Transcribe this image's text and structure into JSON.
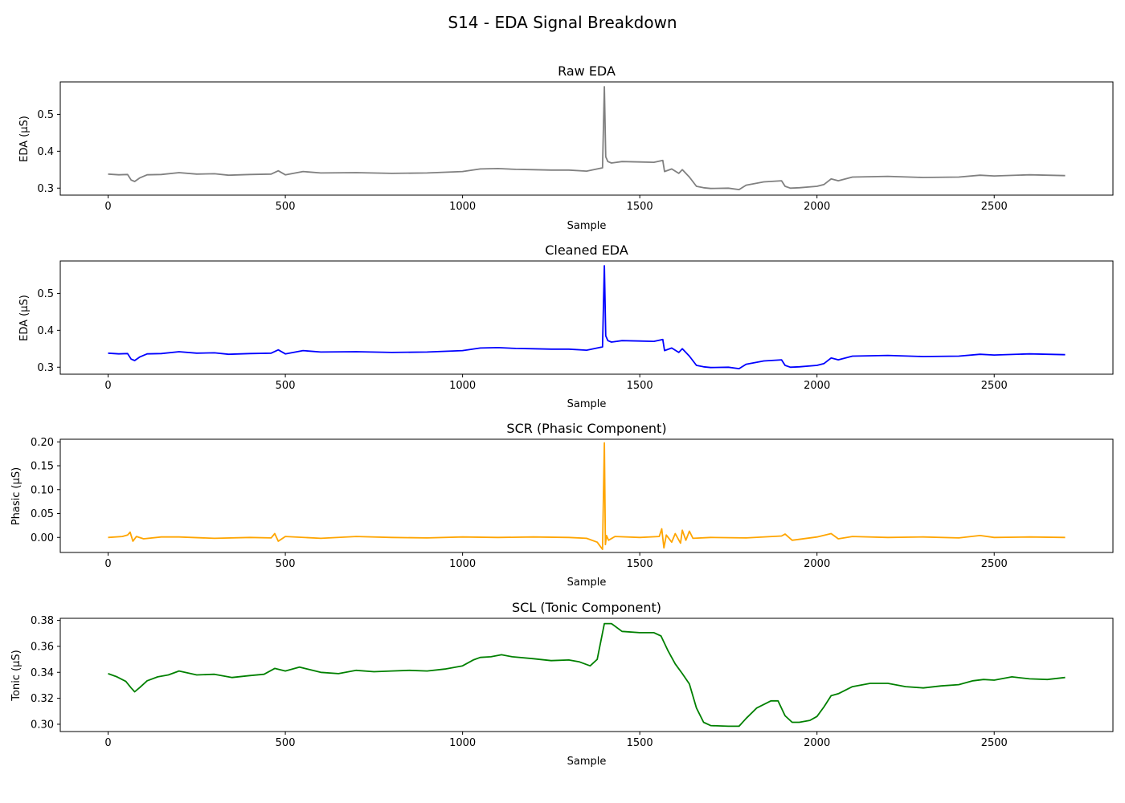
{
  "figure": {
    "title": "S14 - EDA Signal Breakdown"
  },
  "chart_data": [
    {
      "type": "line",
      "title": "Raw EDA",
      "xlabel": "Sample",
      "ylabel": "EDA (µS)",
      "color": "#808080",
      "xlim": [
        -135,
        2835
      ],
      "ylim": [
        0.281,
        0.588
      ],
      "xticks": [
        0,
        500,
        1000,
        1500,
        2000,
        2500
      ],
      "yticks": [
        0.3,
        0.4,
        0.5
      ],
      "ytick_labels": [
        "0.3",
        "0.4",
        "0.5"
      ],
      "series": [
        {
          "x": [
            0,
            30,
            55,
            65,
            75,
            90,
            110,
            150,
            200,
            250,
            300,
            340,
            400,
            460,
            480,
            500,
            550,
            600,
            700,
            800,
            900,
            1000,
            1050,
            1100,
            1150,
            1200,
            1250,
            1300,
            1350,
            1380,
            1395,
            1400,
            1404,
            1410,
            1420,
            1450,
            1500,
            1540,
            1565,
            1570,
            1590,
            1610,
            1620,
            1640,
            1660,
            1680,
            1700,
            1750,
            1780,
            1800,
            1850,
            1900,
            1910,
            1925,
            1950,
            2000,
            2020,
            2040,
            2060,
            2100,
            2200,
            2300,
            2400,
            2460,
            2500,
            2600,
            2700
          ],
          "y": [
            0.338,
            0.336,
            0.337,
            0.322,
            0.318,
            0.328,
            0.336,
            0.337,
            0.342,
            0.338,
            0.339,
            0.335,
            0.337,
            0.338,
            0.347,
            0.336,
            0.345,
            0.341,
            0.342,
            0.34,
            0.341,
            0.345,
            0.352,
            0.353,
            0.351,
            0.35,
            0.349,
            0.349,
            0.346,
            0.352,
            0.355,
            0.575,
            0.385,
            0.372,
            0.368,
            0.372,
            0.371,
            0.37,
            0.375,
            0.345,
            0.352,
            0.34,
            0.35,
            0.33,
            0.305,
            0.301,
            0.299,
            0.3,
            0.296,
            0.308,
            0.317,
            0.32,
            0.305,
            0.3,
            0.301,
            0.305,
            0.31,
            0.325,
            0.32,
            0.33,
            0.332,
            0.329,
            0.33,
            0.335,
            0.333,
            0.336,
            0.334
          ]
        }
      ]
    },
    {
      "type": "line",
      "title": "Cleaned EDA",
      "xlabel": "Sample",
      "ylabel": "EDA (µS)",
      "color": "#0000ff",
      "xlim": [
        -135,
        2835
      ],
      "ylim": [
        0.281,
        0.588
      ],
      "xticks": [
        0,
        500,
        1000,
        1500,
        2000,
        2500
      ],
      "yticks": [
        0.3,
        0.4,
        0.5
      ],
      "ytick_labels": [
        "0.3",
        "0.4",
        "0.5"
      ],
      "series": [
        {
          "x": [
            0,
            30,
            55,
            65,
            75,
            90,
            110,
            150,
            200,
            250,
            300,
            340,
            400,
            460,
            480,
            500,
            550,
            600,
            700,
            800,
            900,
            1000,
            1050,
            1100,
            1150,
            1200,
            1250,
            1300,
            1350,
            1380,
            1395,
            1400,
            1404,
            1410,
            1420,
            1450,
            1500,
            1540,
            1565,
            1570,
            1590,
            1610,
            1620,
            1640,
            1660,
            1680,
            1700,
            1750,
            1780,
            1800,
            1850,
            1900,
            1910,
            1925,
            1950,
            2000,
            2020,
            2040,
            2060,
            2100,
            2200,
            2300,
            2400,
            2460,
            2500,
            2600,
            2700
          ],
          "y": [
            0.338,
            0.336,
            0.337,
            0.322,
            0.318,
            0.328,
            0.336,
            0.337,
            0.342,
            0.338,
            0.339,
            0.335,
            0.337,
            0.338,
            0.347,
            0.336,
            0.345,
            0.341,
            0.342,
            0.34,
            0.341,
            0.345,
            0.352,
            0.353,
            0.351,
            0.35,
            0.349,
            0.349,
            0.346,
            0.352,
            0.355,
            0.575,
            0.385,
            0.372,
            0.368,
            0.372,
            0.371,
            0.37,
            0.375,
            0.345,
            0.352,
            0.34,
            0.35,
            0.33,
            0.305,
            0.301,
            0.299,
            0.3,
            0.296,
            0.308,
            0.317,
            0.32,
            0.305,
            0.3,
            0.301,
            0.305,
            0.31,
            0.325,
            0.32,
            0.33,
            0.332,
            0.329,
            0.33,
            0.335,
            0.333,
            0.336,
            0.334
          ]
        }
      ]
    },
    {
      "type": "line",
      "title": "SCR (Phasic Component)",
      "xlabel": "Sample",
      "ylabel": "Phasic (µS)",
      "color": "#ffa500",
      "xlim": [
        -135,
        2835
      ],
      "ylim": [
        -0.0315,
        0.2055
      ],
      "xticks": [
        0,
        500,
        1000,
        1500,
        2000,
        2500
      ],
      "yticks": [
        0.0,
        0.05,
        0.1,
        0.15,
        0.2
      ],
      "ytick_labels": [
        "0.00",
        "0.05",
        "0.10",
        "0.15",
        "0.20"
      ],
      "series": [
        {
          "x": [
            0,
            40,
            55,
            62,
            70,
            80,
            100,
            150,
            200,
            300,
            400,
            460,
            470,
            480,
            500,
            600,
            700,
            800,
            900,
            1000,
            1100,
            1200,
            1300,
            1350,
            1380,
            1390,
            1395,
            1400,
            1403,
            1406,
            1412,
            1430,
            1500,
            1555,
            1562,
            1568,
            1575,
            1590,
            1600,
            1615,
            1620,
            1630,
            1640,
            1650,
            1700,
            1800,
            1900,
            1910,
            1930,
            2000,
            2040,
            2060,
            2100,
            2200,
            2300,
            2400,
            2460,
            2500,
            2600,
            2700
          ],
          "y": [
            0.0,
            0.002,
            0.005,
            0.011,
            -0.008,
            0.002,
            -0.003,
            0.001,
            0.001,
            -0.002,
            0.0,
            -0.001,
            0.008,
            -0.008,
            0.002,
            -0.002,
            0.002,
            0.0,
            -0.001,
            0.001,
            0.0,
            0.001,
            0.0,
            -0.002,
            -0.01,
            -0.02,
            -0.025,
            0.198,
            -0.015,
            0.004,
            -0.006,
            0.002,
            0.0,
            0.002,
            0.018,
            -0.022,
            0.005,
            -0.01,
            0.008,
            -0.012,
            0.015,
            -0.006,
            0.013,
            -0.002,
            0.0,
            -0.001,
            0.003,
            0.007,
            -0.006,
            0.001,
            0.008,
            -0.003,
            0.002,
            0.0,
            0.001,
            -0.001,
            0.004,
            0.0,
            0.001,
            0.0
          ]
        }
      ]
    },
    {
      "type": "line",
      "title": "SCL (Tonic Component)",
      "xlabel": "Sample",
      "ylabel": "Tonic (µS)",
      "color": "#008000",
      "xlim": [
        -135,
        2835
      ],
      "ylim": [
        0.2944,
        0.3816
      ],
      "xticks": [
        0,
        500,
        1000,
        1500,
        2000,
        2500
      ],
      "yticks": [
        0.3,
        0.32,
        0.34,
        0.36,
        0.38
      ],
      "ytick_labels": [
        "0.30",
        "0.32",
        "0.34",
        "0.36",
        "0.38"
      ],
      "series": [
        {
          "x": [
            0,
            25,
            50,
            65,
            75,
            90,
            110,
            140,
            170,
            200,
            250,
            300,
            350,
            400,
            440,
            470,
            500,
            540,
            600,
            650,
            700,
            750,
            800,
            850,
            900,
            950,
            1000,
            1030,
            1050,
            1080,
            1110,
            1140,
            1200,
            1250,
            1300,
            1330,
            1360,
            1380,
            1400,
            1420,
            1450,
            1500,
            1540,
            1560,
            1580,
            1600,
            1620,
            1640,
            1660,
            1680,
            1700,
            1750,
            1780,
            1800,
            1830,
            1870,
            1890,
            1910,
            1930,
            1950,
            1980,
            2000,
            2020,
            2040,
            2060,
            2100,
            2150,
            2200,
            2250,
            2300,
            2350,
            2400,
            2440,
            2470,
            2500,
            2550,
            2600,
            2650,
            2700
          ],
          "y": [
            0.339,
            0.3365,
            0.333,
            0.328,
            0.325,
            0.3285,
            0.3335,
            0.3365,
            0.338,
            0.341,
            0.338,
            0.3385,
            0.336,
            0.3375,
            0.3385,
            0.343,
            0.341,
            0.344,
            0.34,
            0.339,
            0.3415,
            0.3405,
            0.341,
            0.3415,
            0.341,
            0.3425,
            0.345,
            0.3495,
            0.3515,
            0.352,
            0.3535,
            0.352,
            0.3505,
            0.349,
            0.3495,
            0.348,
            0.345,
            0.35,
            0.3775,
            0.3775,
            0.3715,
            0.3705,
            0.3705,
            0.368,
            0.3565,
            0.3465,
            0.339,
            0.331,
            0.3125,
            0.3015,
            0.299,
            0.2985,
            0.2985,
            0.3045,
            0.3125,
            0.318,
            0.318,
            0.3065,
            0.3015,
            0.3015,
            0.303,
            0.306,
            0.3135,
            0.322,
            0.3235,
            0.329,
            0.3315,
            0.3315,
            0.329,
            0.328,
            0.3295,
            0.3305,
            0.3335,
            0.3345,
            0.334,
            0.3365,
            0.335,
            0.3345,
            0.336
          ]
        }
      ]
    }
  ]
}
